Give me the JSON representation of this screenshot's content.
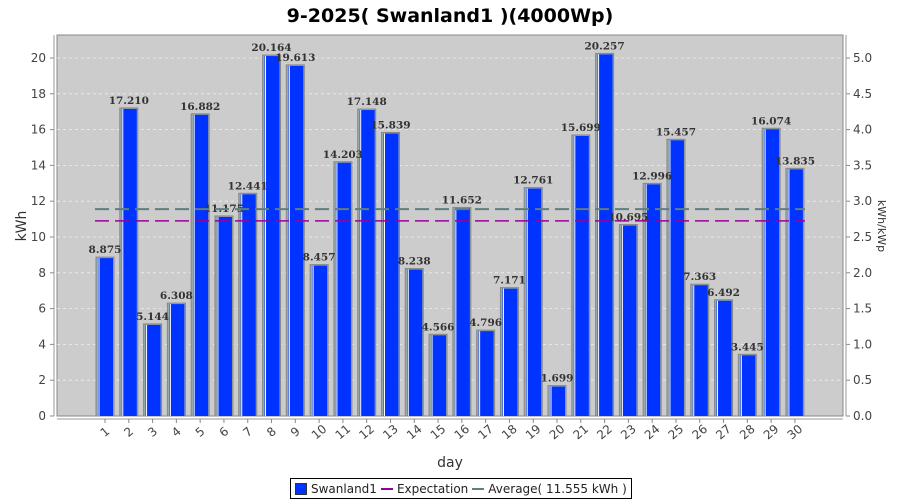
{
  "chart_data": {
    "type": "bar",
    "title": "9-2025( Swanland1 )(4000Wp)",
    "xlabel": "day",
    "ylabel": "kWh",
    "ylabel_right": "kWh/kWp",
    "ylim": [
      0,
      21.2
    ],
    "ylim_right": [
      0,
      5.3
    ],
    "yticks": [
      "0",
      "2",
      "4",
      "6",
      "8",
      "10",
      "12",
      "14",
      "16",
      "18",
      "20"
    ],
    "yticks_right": [
      "0.0",
      "0.5",
      "1.0",
      "1.5",
      "2.0",
      "2.5",
      "3.0",
      "3.5",
      "4.0",
      "4.5",
      "5.0"
    ],
    "categories": [
      "1",
      "2",
      "3",
      "4",
      "5",
      "6",
      "7",
      "8",
      "9",
      "10",
      "11",
      "12",
      "13",
      "14",
      "15",
      "16",
      "17",
      "18",
      "19",
      "20",
      "21",
      "22",
      "23",
      "24",
      "25",
      "26",
      "27",
      "28",
      "29",
      "30"
    ],
    "series": [
      {
        "name": "Swanland1",
        "values": [
          8.875,
          17.21,
          5.144,
          6.308,
          16.882,
          11.175,
          12.441,
          20.164,
          19.613,
          8.457,
          14.203,
          17.148,
          15.839,
          8.238,
          4.566,
          11.652,
          4.796,
          7.171,
          12.761,
          1.699,
          15.699,
          20.257,
          10.695,
          12.996,
          15.457,
          7.363,
          6.492,
          3.445,
          16.074,
          13.835
        ],
        "labels": [
          "8.875",
          "17.210",
          "5.144",
          "6.308",
          "16.882",
          "11.175",
          "12.441",
          "20.164",
          "19.613",
          "8.457",
          "14.203",
          "17.148",
          "15.839",
          "8.238",
          "4.566",
          "11.652",
          "4.796",
          "7.171",
          "12.761",
          "1.699",
          "15.699",
          "20.257",
          "10.695",
          "12.996",
          "15.457",
          "7.363",
          "6.492",
          "3.445",
          "16.074",
          "13.835"
        ]
      }
    ],
    "expectation": 10.9,
    "average": 11.555,
    "legend": [
      "Swanland1",
      "Expectation",
      "Average( 11.555 kWh )"
    ],
    "colors": {
      "bar": "#0033ff",
      "expectation": "#990099",
      "average": "#5f7f7f",
      "plot_bg": "#cccccc"
    }
  }
}
